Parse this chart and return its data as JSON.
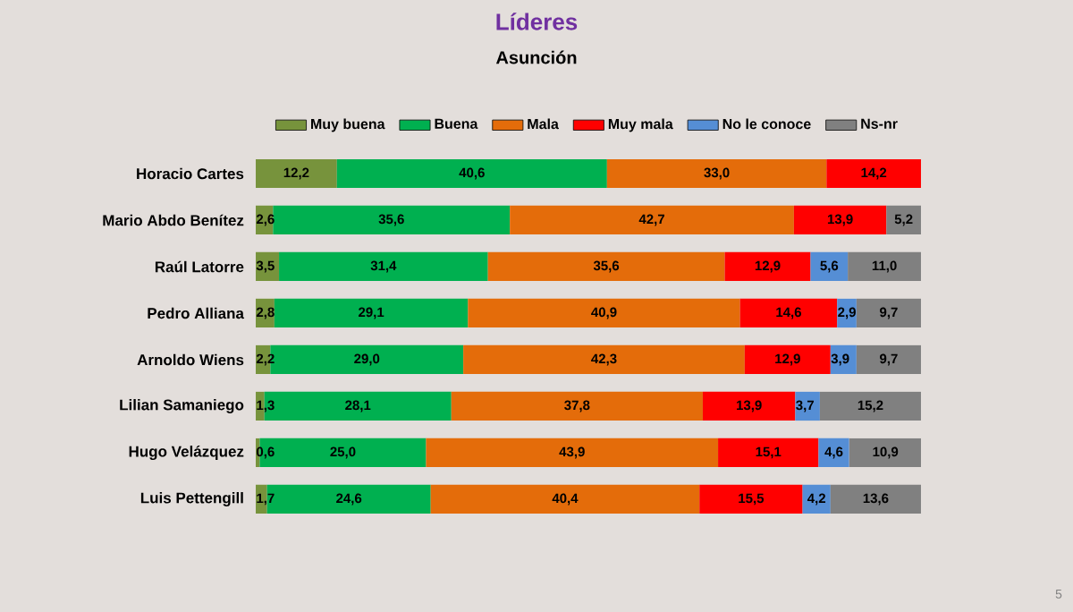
{
  "chart_data": {
    "type": "bar",
    "orientation": "horizontal",
    "stacked": true,
    "title": "Líderes",
    "subtitle": "Asunción",
    "categories": [
      "Horacio Cartes",
      "Mario Abdo Benítez",
      "Raúl Latorre",
      "Pedro Alliana",
      "Arnoldo Wiens",
      "Lilian Samaniego",
      "Hugo Velázquez",
      "Luis Pettengill"
    ],
    "xlim": [
      0,
      100
    ],
    "tick_labels": "y",
    "legend": "top",
    "series": [
      {
        "name": "Muy buena",
        "color": "#77933c",
        "values": [
          12.2,
          2.6,
          3.5,
          2.8,
          2.2,
          1.3,
          0.6,
          1.7
        ],
        "value_labels": [
          "12,2",
          "2,6",
          "3,5",
          "2,8",
          "2,2",
          "1,3",
          "0,6",
          "1,7"
        ]
      },
      {
        "name": "Buena",
        "color": "#00b050",
        "values": [
          40.6,
          35.6,
          31.4,
          29.1,
          29.0,
          28.1,
          25.0,
          24.6
        ],
        "value_labels": [
          "40,6",
          "35,6",
          "31,4",
          "29,1",
          "29,0",
          "28,1",
          "25,0",
          "24,6"
        ]
      },
      {
        "name": "Mala",
        "color": "#e46c0a",
        "values": [
          33.0,
          42.7,
          35.6,
          40.9,
          42.3,
          37.8,
          43.9,
          40.4
        ],
        "value_labels": [
          "33,0",
          "42,7",
          "35,6",
          "40,9",
          "42,3",
          "37,8",
          "43,9",
          "40,4"
        ]
      },
      {
        "name": "Muy mala",
        "color": "#ff0000",
        "values": [
          14.2,
          13.9,
          12.9,
          14.6,
          12.9,
          13.9,
          15.1,
          15.5
        ],
        "value_labels": [
          "14,2",
          "13,9",
          "12,9",
          "14,6",
          "12,9",
          "13,9",
          "15,1",
          "15,5"
        ]
      },
      {
        "name": "No le conoce",
        "color": "#558ed5",
        "values": [
          null,
          null,
          5.6,
          2.9,
          3.9,
          3.7,
          4.6,
          4.2
        ],
        "value_labels": [
          null,
          null,
          "5,6",
          "2,9",
          "3,9",
          "3,7",
          "4,6",
          "4,2"
        ]
      },
      {
        "name": "Ns-nr",
        "color": "#808080",
        "values": [
          null,
          5.2,
          11.0,
          9.7,
          9.7,
          15.2,
          10.9,
          13.6
        ],
        "value_labels": [
          null,
          "5,2",
          "11,0",
          "9,7",
          "9,7",
          "15,2",
          "10,9",
          "13,6"
        ]
      }
    ],
    "annotations": [
      "5"
    ]
  }
}
